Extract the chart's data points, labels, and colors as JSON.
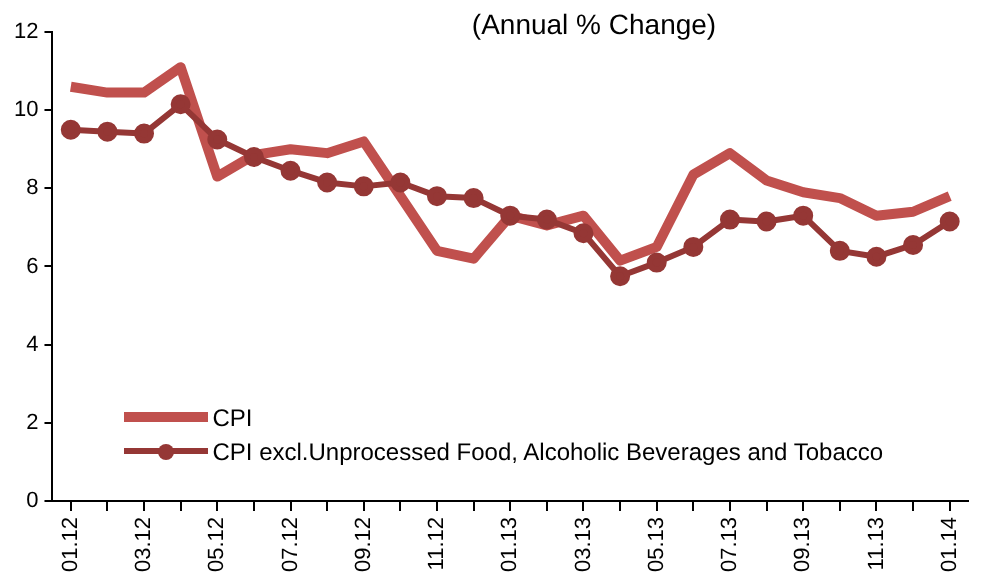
{
  "chart_data": {
    "type": "line",
    "title": "(Annual % Change)",
    "categories": [
      "01.12",
      null,
      "03.12",
      null,
      "05.12",
      null,
      "07.12",
      null,
      "09.12",
      null,
      "11.12",
      null,
      "01.13",
      null,
      "03.13",
      null,
      "05.13",
      null,
      "07.13",
      null,
      "09.13",
      null,
      "11.13",
      null,
      "01.14"
    ],
    "series": [
      {
        "name": "CPI",
        "color": "#c0504d",
        "marker": "none",
        "values": [
          10.6,
          10.45,
          10.45,
          11.1,
          8.3,
          8.85,
          9.0,
          8.9,
          9.2,
          7.8,
          6.4,
          6.2,
          7.3,
          7.05,
          7.3,
          6.15,
          6.5,
          8.35,
          8.9,
          8.2,
          7.9,
          7.75,
          7.3,
          7.4,
          7.8
        ]
      },
      {
        "name": "CPI excl.Unprocessed Food, Alcoholic Beverages and Tobacco",
        "color": "#953735",
        "marker": "circle",
        "values": [
          9.5,
          9.45,
          9.4,
          10.15,
          9.25,
          8.8,
          8.45,
          8.15,
          8.05,
          8.15,
          7.8,
          7.75,
          7.3,
          7.2,
          6.85,
          5.75,
          6.1,
          6.5,
          7.2,
          7.15,
          7.3,
          6.4,
          6.25,
          6.55,
          7.15
        ]
      }
    ],
    "ylim": [
      0,
      12
    ],
    "yticks": [
      0,
      2,
      4,
      6,
      8,
      10,
      12
    ],
    "grid": false,
    "legend": "bottom left",
    "line_style": "solid"
  }
}
